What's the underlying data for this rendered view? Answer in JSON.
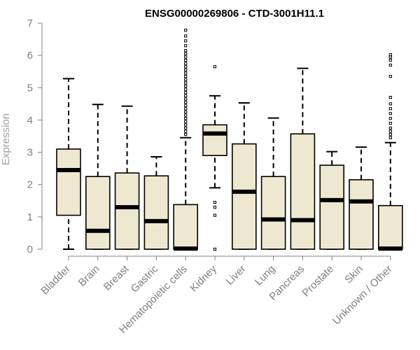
{
  "chart_data": {
    "type": "boxplot",
    "title": "ENSG00000269806 - CTD-3001H11.1",
    "xlabel": "",
    "ylabel": "Expression",
    "ylim": [
      0,
      7
    ],
    "yticks": [
      "0",
      "1",
      "2",
      "3",
      "4",
      "5",
      "6",
      "7"
    ],
    "box_color": "#efe8d0",
    "categories": [
      "Bladder",
      "Brain",
      "Breast",
      "Gastric",
      "Hematopoietic cells",
      "Kidney",
      "Liver",
      "Lung",
      "Pancreas",
      "Prostate",
      "Skin",
      "Unknown / Other"
    ],
    "boxes": [
      {
        "name": "Bladder",
        "min": 0.0,
        "q1": 1.05,
        "median": 2.45,
        "q3": 3.1,
        "max": 5.28,
        "outliers": []
      },
      {
        "name": "Brain",
        "min": 0.0,
        "q1": 0.0,
        "median": 0.57,
        "q3": 2.25,
        "max": 4.48,
        "outliers": []
      },
      {
        "name": "Breast",
        "min": 0.0,
        "q1": 0.0,
        "median": 1.3,
        "q3": 2.36,
        "max": 4.43,
        "outliers": []
      },
      {
        "name": "Gastric",
        "min": 0.0,
        "q1": 0.0,
        "median": 0.87,
        "q3": 2.27,
        "max": 2.86,
        "outliers": []
      },
      {
        "name": "Hematopoietic cells",
        "min": 0.0,
        "q1": 0.0,
        "median": 0.02,
        "q3": 1.38,
        "max": 3.45,
        "outliers": [
          3.55,
          3.65,
          3.75,
          3.85,
          3.95,
          4.05,
          4.15,
          4.25,
          4.35,
          4.45,
          4.55,
          4.65,
          4.75,
          4.85,
          4.95,
          5.05,
          5.15,
          5.25,
          5.35,
          5.45,
          5.55,
          5.65,
          5.75,
          5.85,
          5.95,
          6.05,
          6.15,
          6.3,
          6.45,
          6.6,
          6.78
        ]
      },
      {
        "name": "Kidney",
        "min": 1.9,
        "q1": 2.9,
        "median": 3.58,
        "q3": 3.85,
        "max": 4.75,
        "outliers": [
          0.0,
          1.05,
          1.3,
          1.45,
          5.65
        ]
      },
      {
        "name": "Liver",
        "min": 0.0,
        "q1": 0.0,
        "median": 1.78,
        "q3": 3.26,
        "max": 4.53,
        "outliers": []
      },
      {
        "name": "Lung",
        "min": 0.0,
        "q1": 0.0,
        "median": 0.92,
        "q3": 2.25,
        "max": 4.06,
        "outliers": []
      },
      {
        "name": "Pancreas",
        "min": 0.0,
        "q1": 0.0,
        "median": 0.9,
        "q3": 3.57,
        "max": 5.6,
        "outliers": []
      },
      {
        "name": "Prostate",
        "min": 0.0,
        "q1": 0.0,
        "median": 1.52,
        "q3": 2.6,
        "max": 3.02,
        "outliers": []
      },
      {
        "name": "Skin",
        "min": 0.0,
        "q1": 0.0,
        "median": 1.48,
        "q3": 2.15,
        "max": 3.16,
        "outliers": []
      },
      {
        "name": "Unknown / Other",
        "min": 0.0,
        "q1": 0.0,
        "median": 0.02,
        "q3": 1.35,
        "max": 3.3,
        "outliers": [
          3.45,
          3.55,
          3.65,
          3.75,
          3.9,
          4.05,
          4.2,
          4.35,
          4.5,
          4.7,
          5.35,
          5.7,
          5.85,
          5.95,
          6.02
        ]
      }
    ]
  }
}
